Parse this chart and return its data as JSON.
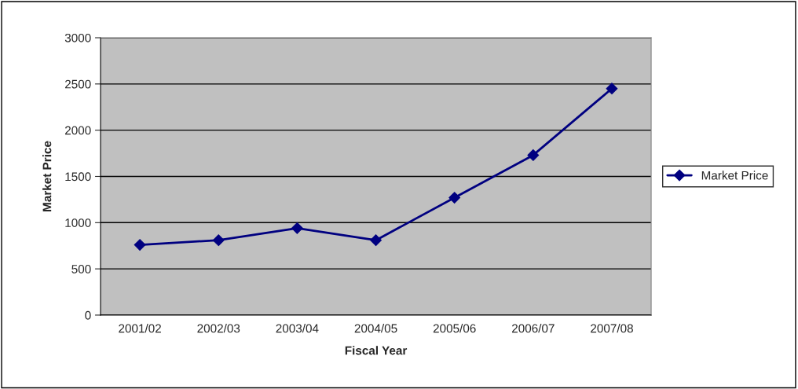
{
  "chart_data": {
    "type": "line",
    "xlabel": "Fiscal Year",
    "ylabel": "Market Price",
    "categories": [
      "2001/02",
      "2002/03",
      "2003/04",
      "2004/05",
      "2005/06",
      "2006/07",
      "2007/08"
    ],
    "series": [
      {
        "name": "Market Price",
        "color": "#000080",
        "values": [
          760,
          810,
          940,
          810,
          1270,
          1730,
          2450
        ]
      }
    ],
    "ylim": [
      0,
      3000
    ],
    "yticks": [
      0,
      500,
      1000,
      1500,
      2000,
      2500,
      3000
    ],
    "grid": "y",
    "legend": "right",
    "marker": "diamond",
    "line_style": "solid"
  }
}
